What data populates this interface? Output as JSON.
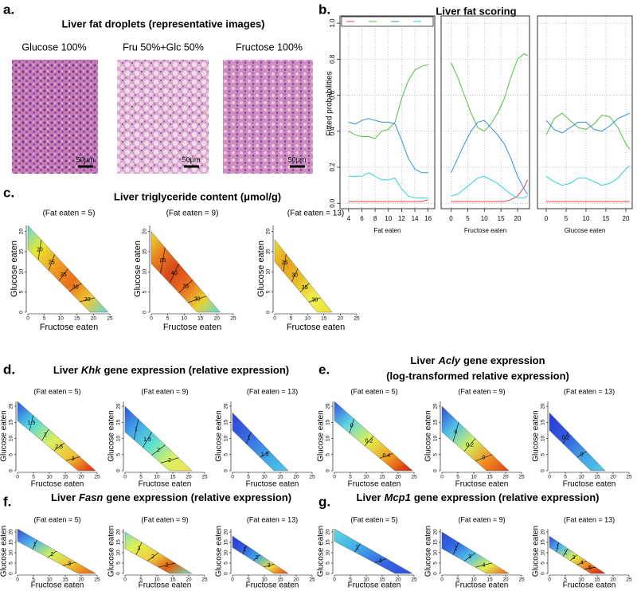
{
  "panels": {
    "a": {
      "label": "a.",
      "title": "Liver fat droplets (representative images)",
      "images": [
        {
          "label": "Glucose 100%",
          "scale": "50µm"
        },
        {
          "label": "Fru 50%+Glc 50%",
          "scale": "50µm"
        },
        {
          "label": "Fructose 100%",
          "scale": "50µm"
        }
      ]
    },
    "b": {
      "label": "b.",
      "title": "Liver fat scoring",
      "ylabel": "Fitted probabilities"
    },
    "c": {
      "label": "c.",
      "title": "Liver triglyceride content (μmol/g)"
    },
    "d": {
      "label": "d.",
      "title": [
        "Liver",
        "Khk",
        "gene expression (relative expression)"
      ]
    },
    "e": {
      "label": "e.",
      "title": [
        "Liver",
        "Acly",
        "gene expression"
      ],
      "subtitle": "(log-transformed relative expression)"
    },
    "f": {
      "label": "f.",
      "title": [
        "Liver",
        "Fasn",
        "gene expression (relative expression)"
      ]
    },
    "g": {
      "label": "g.",
      "title": [
        "Liver",
        "Mcp1",
        "gene expression (relative expression)"
      ]
    }
  },
  "chart_data": [
    {
      "type": "line",
      "xlabel": "Fat eaten",
      "grid": true,
      "xlim": [
        2.7,
        17
      ],
      "ylim": [
        -0.03,
        1.04
      ],
      "xticks": [
        4,
        6,
        8,
        10,
        12,
        14,
        16
      ],
      "yticks": [
        {
          "value": 0,
          "label": "0.0"
        },
        {
          "value": 0.2,
          "label": "0.2"
        },
        {
          "value": 0.4,
          "label": "0.4"
        },
        {
          "value": 0.6,
          "label": "0.6"
        },
        {
          "value": 0.8,
          "label": "0.8"
        },
        {
          "value": 1,
          "label": "1.0"
        }
      ],
      "x": [
        4,
        5,
        6,
        7,
        8,
        9,
        10,
        11,
        12,
        13,
        14,
        15,
        16
      ],
      "series": [
        {
          "color": "#e8404a",
          "values": [
            0.01,
            0.01,
            0.01,
            0.01,
            0.01,
            0.01,
            0.01,
            0.01,
            0.01,
            0.01,
            0.01,
            0.01,
            0.02
          ]
        },
        {
          "color": "#50c040",
          "values": [
            0.4,
            0.38,
            0.37,
            0.37,
            0.36,
            0.4,
            0.41,
            0.45,
            0.58,
            0.68,
            0.74,
            0.76,
            0.77
          ]
        },
        {
          "color": "#3090e0",
          "values": [
            0.45,
            0.44,
            0.46,
            0.47,
            0.46,
            0.45,
            0.45,
            0.44,
            0.35,
            0.25,
            0.19,
            0.17,
            0.17
          ]
        },
        {
          "color": "#30d0e0",
          "values": [
            0.15,
            0.15,
            0.15,
            0.17,
            0.15,
            0.13,
            0.13,
            0.14,
            0.08,
            0.04,
            0.03,
            0.03,
            0.03
          ]
        }
      ]
    },
    {
      "type": "line",
      "xlabel": "Fructose eaten",
      "grid": true,
      "xlim": [
        -3,
        23.6
      ],
      "ylim": [
        -0.03,
        1.04
      ],
      "xticks": [
        0,
        5,
        10,
        15,
        20
      ],
      "yticks": [
        0,
        0.2,
        0.4,
        0.6,
        0.8,
        1
      ],
      "x": [
        0,
        2,
        4,
        6,
        8,
        10,
        12,
        14,
        16,
        18,
        20,
        22,
        23
      ],
      "series": [
        {
          "color": "#e8404a",
          "values": [
            0.01,
            0.01,
            0.01,
            0.01,
            0.01,
            0.01,
            0.01,
            0.01,
            0.01,
            0.02,
            0.04,
            0.09,
            0.13
          ]
        },
        {
          "color": "#50c040",
          "values": [
            0.78,
            0.7,
            0.6,
            0.5,
            0.42,
            0.4,
            0.44,
            0.5,
            0.58,
            0.7,
            0.8,
            0.83,
            0.82
          ]
        },
        {
          "color": "#3090e0",
          "values": [
            0.17,
            0.25,
            0.33,
            0.4,
            0.45,
            0.46,
            0.42,
            0.38,
            0.33,
            0.25,
            0.15,
            0.08,
            0.05
          ]
        },
        {
          "color": "#30d0e0",
          "values": [
            0.04,
            0.05,
            0.08,
            0.11,
            0.14,
            0.15,
            0.13,
            0.11,
            0.08,
            0.05,
            0.03,
            0.03,
            0.04
          ]
        }
      ]
    },
    {
      "type": "line",
      "xlabel": "Glucose eaten",
      "grid": true,
      "xlim": [
        -2.2,
        21.6
      ],
      "ylim": [
        -0.03,
        1.04
      ],
      "xticks": [
        0,
        5,
        10,
        15,
        20
      ],
      "yticks": [
        0,
        0.2,
        0.4,
        0.6,
        0.8,
        1
      ],
      "x": [
        0,
        2,
        4,
        6,
        8,
        10,
        12,
        14,
        16,
        18,
        20,
        21
      ],
      "series": [
        {
          "color": "#e8404a",
          "values": [
            0.01,
            0.01,
            0.01,
            0.01,
            0.01,
            0.01,
            0.01,
            0.01,
            0.01,
            0.01,
            0.01,
            0.01
          ]
        },
        {
          "color": "#50c040",
          "values": [
            0.38,
            0.47,
            0.5,
            0.46,
            0.42,
            0.41,
            0.44,
            0.49,
            0.48,
            0.42,
            0.33,
            0.3
          ]
        },
        {
          "color": "#3090e0",
          "values": [
            0.46,
            0.41,
            0.39,
            0.42,
            0.45,
            0.45,
            0.41,
            0.4,
            0.43,
            0.47,
            0.49,
            0.5
          ]
        },
        {
          "color": "#30d0e0",
          "values": [
            0.15,
            0.12,
            0.1,
            0.11,
            0.14,
            0.14,
            0.12,
            0.1,
            0.11,
            0.14,
            0.19,
            0.21
          ]
        }
      ]
    },
    {
      "type": "contour",
      "subtitle": "(Fat eaten = 5)",
      "xlabel": "Fructose eaten",
      "ylabel": "Glucose eaten",
      "xlim": [
        0,
        25
      ],
      "ylim": [
        0,
        21.5
      ],
      "xticks": [
        0,
        5,
        10,
        15,
        20,
        25
      ],
      "yticks": [
        0,
        5,
        10,
        15,
        20
      ],
      "levels": [
        20,
        25,
        35,
        30,
        20
      ],
      "colors": [
        "#5fd8e0",
        "#e8e830",
        "#f0a020",
        "#e8701c",
        "#f0c830",
        "#60d8e0"
      ]
    },
    {
      "type": "contour",
      "subtitle": "(Fat eaten = 9)",
      "xlabel": "Fructose eaten",
      "ylabel": "Glucose eaten",
      "xlim": [
        0,
        25
      ],
      "ylim": [
        0,
        21.5
      ],
      "xticks": [
        0,
        5,
        10,
        15,
        20,
        25
      ],
      "yticks": [
        0,
        5,
        10,
        15,
        20
      ],
      "levels": [
        25,
        40,
        35,
        30
      ],
      "colors": [
        "#e8e030",
        "#e88020",
        "#d84818",
        "#e87020",
        "#e8d030",
        "#60d8e0"
      ]
    },
    {
      "type": "contour",
      "subtitle": "(Fat eaten = 13)",
      "xlabel": "Fructose eaten",
      "ylabel": "Glucose eaten",
      "xlim": [
        0,
        25
      ],
      "ylim": [
        0,
        21.5
      ],
      "xticks": [
        0,
        5,
        10,
        15,
        20,
        25
      ],
      "yticks": [
        0,
        5,
        10,
        15,
        20
      ],
      "levels": [
        25,
        30,
        35,
        30
      ],
      "colors": [
        "#e8e030",
        "#e8a020",
        "#e8c028",
        "#f0f050",
        "#e8e030"
      ]
    },
    {
      "type": "contour",
      "subtitle": "(Fat eaten = 5)",
      "xlabel": "Fructose eaten",
      "ylabel": "Glucose eaten",
      "xlim": [
        0,
        25
      ],
      "ylim": [
        0,
        21.5
      ],
      "xticks": [
        0,
        5,
        10,
        15,
        20,
        25
      ],
      "yticks": [
        0,
        5,
        10,
        15,
        20
      ],
      "levels": [
        1.5,
        2,
        2.5,
        3
      ],
      "colors": [
        "#3050e0",
        "#50d8e0",
        "#d8f060",
        "#f0c030",
        "#e02010"
      ]
    },
    {
      "type": "contour",
      "subtitle": "(Fat eaten = 9)",
      "xlabel": "Fructose eaten",
      "ylabel": "Glucose eaten",
      "xlim": [
        0,
        25
      ],
      "ylim": [
        0,
        21.5
      ],
      "xticks": [
        0,
        5,
        10,
        15,
        20,
        25
      ],
      "yticks": [
        0,
        5,
        10,
        15,
        20
      ],
      "levels": [
        1,
        1.5,
        2,
        2
      ],
      "colors": [
        "#3050e0",
        "#40a8e8",
        "#60e0d0",
        "#d8f060",
        "#f0e050"
      ]
    },
    {
      "type": "contour",
      "subtitle": "(Fat eaten = 13)",
      "xlabel": "Fructose eaten",
      "ylabel": "Glucose eaten",
      "xlim": [
        0,
        25
      ],
      "ylim": [
        0,
        21.5
      ],
      "xticks": [
        0,
        5,
        10,
        15,
        20,
        25
      ],
      "yticks": [
        0,
        5,
        10,
        15,
        20
      ],
      "levels": [
        1,
        1.5
      ],
      "colors": [
        "#3040d8",
        "#3868e0",
        "#40a0e8",
        "#50c8e8"
      ]
    },
    {
      "type": "contour",
      "subtitle": "(Fat eaten = 5)",
      "xlabel": "Fructose eaten",
      "ylabel": "Glucose eaten",
      "xlim": [
        0,
        25
      ],
      "ylim": [
        0,
        21.5
      ],
      "xticks": [
        0,
        5,
        10,
        15,
        20,
        25
      ],
      "yticks": [
        0,
        5,
        10,
        15,
        20
      ],
      "levels": [
        0,
        0.2,
        0.4
      ],
      "colors": [
        "#3050e0",
        "#60d8e0",
        "#e0f050",
        "#f0a020",
        "#d81810"
      ]
    },
    {
      "type": "contour",
      "subtitle": "(Fat eaten = 9)",
      "xlabel": "Fructose eaten",
      "ylabel": "Glucose eaten",
      "xlim": [
        0,
        25
      ],
      "ylim": [
        0,
        21.5
      ],
      "xticks": [
        0,
        5,
        10,
        15,
        20,
        25
      ],
      "yticks": [
        0,
        5,
        10,
        15,
        20
      ],
      "levels": [
        0,
        0.2,
        0
      ],
      "colors": [
        "#3048d8",
        "#50c0e8",
        "#d0f060",
        "#f09020",
        "#e04010"
      ]
    },
    {
      "type": "contour",
      "subtitle": "(Fat eaten = 13)",
      "xlabel": "Fructose eaten",
      "ylabel": "Glucose eaten",
      "xlim": [
        0,
        25
      ],
      "ylim": [
        0,
        21.5
      ],
      "xticks": [
        0,
        5,
        10,
        15,
        20,
        25
      ],
      "yticks": [
        0,
        5,
        10,
        15,
        20
      ],
      "levels": [
        0.2,
        0
      ],
      "colors": [
        "#2838d0",
        "#3058e0",
        "#40a0e8",
        "#50c8e8"
      ]
    },
    {
      "type": "contour",
      "subtitle": "(Fat eaten = 5)",
      "xlabel": "Fructose eaten",
      "ylabel": "Glucose eaten",
      "xlim": [
        0,
        25
      ],
      "ylim": [
        0,
        21.5
      ],
      "xticks": [
        0,
        5,
        10,
        15,
        20,
        25
      ],
      "yticks": [
        0,
        5,
        10,
        15,
        20
      ],
      "levels": [
        1,
        2,
        3
      ],
      "colors": [
        "#3048d8",
        "#50b8e8",
        "#d0f060",
        "#f0c030",
        "#e86018"
      ]
    },
    {
      "type": "contour",
      "subtitle": "(Fat eaten = 9)",
      "xlabel": "Fructose eaten",
      "ylabel": "Glucose eaten",
      "xlim": [
        0,
        25
      ],
      "ylim": [
        0,
        21.5
      ],
      "xticks": [
        0,
        5,
        10,
        15,
        20,
        25
      ],
      "yticks": [
        0,
        5,
        10,
        15,
        20
      ],
      "levels": [
        3,
        2,
        2
      ],
      "colors": [
        "#80e0c0",
        "#e0f050",
        "#f0d040",
        "#e06010",
        "#70e0c0"
      ]
    },
    {
      "type": "contour",
      "subtitle": "(Fat eaten = 13)",
      "xlabel": "Fructose eaten",
      "ylabel": "Glucose eaten",
      "xlim": [
        0,
        25
      ],
      "ylim": [
        0,
        21.5
      ],
      "xticks": [
        0,
        5,
        10,
        15,
        20,
        25
      ],
      "yticks": [
        0,
        5,
        10,
        15,
        20
      ],
      "levels": [
        1,
        2,
        3
      ],
      "colors": [
        "#2838d0",
        "#3058e0",
        "#40a8e8",
        "#f0e040",
        "#e04010"
      ]
    },
    {
      "type": "contour",
      "subtitle": "(Fat eaten = 5)",
      "xlabel": "Fructose eaten",
      "ylabel": "Glucose eaten",
      "xlim": [
        0,
        25
      ],
      "ylim": [
        0,
        21.5
      ],
      "xticks": [
        0,
        5,
        10,
        15,
        20,
        25
      ],
      "yticks": [
        0,
        5,
        10,
        15,
        20
      ],
      "levels": [
        2,
        1
      ],
      "colors": [
        "#60d8e0",
        "#40b0e8",
        "#3868e0",
        "#3050e0"
      ]
    },
    {
      "type": "contour",
      "subtitle": "(Fat eaten = 9)",
      "xlabel": "Fructose eaten",
      "ylabel": "Glucose eaten",
      "xlim": [
        0,
        25
      ],
      "ylim": [
        0,
        21.5
      ],
      "xticks": [
        0,
        5,
        10,
        15,
        20,
        25
      ],
      "yticks": [
        0,
        5,
        10,
        15,
        20
      ],
      "levels": [
        2,
        3,
        4
      ],
      "colors": [
        "#3048d8",
        "#3068e0",
        "#50c0e8",
        "#e0f050",
        "#e86018"
      ]
    },
    {
      "type": "contour",
      "subtitle": "(Fat eaten = 13)",
      "xlabel": "Fructose eaten",
      "ylabel": "Glucose eaten",
      "xlim": [
        0,
        25
      ],
      "ylim": [
        0,
        21.5
      ],
      "xticks": [
        0,
        5,
        10,
        15,
        20,
        25
      ],
      "yticks": [
        0,
        5,
        10,
        15,
        20
      ],
      "levels": [
        1,
        2,
        3,
        4,
        5
      ],
      "colors": [
        "#3048d8",
        "#50b8e8",
        "#e0f050",
        "#f08020",
        "#c81810"
      ]
    }
  ]
}
